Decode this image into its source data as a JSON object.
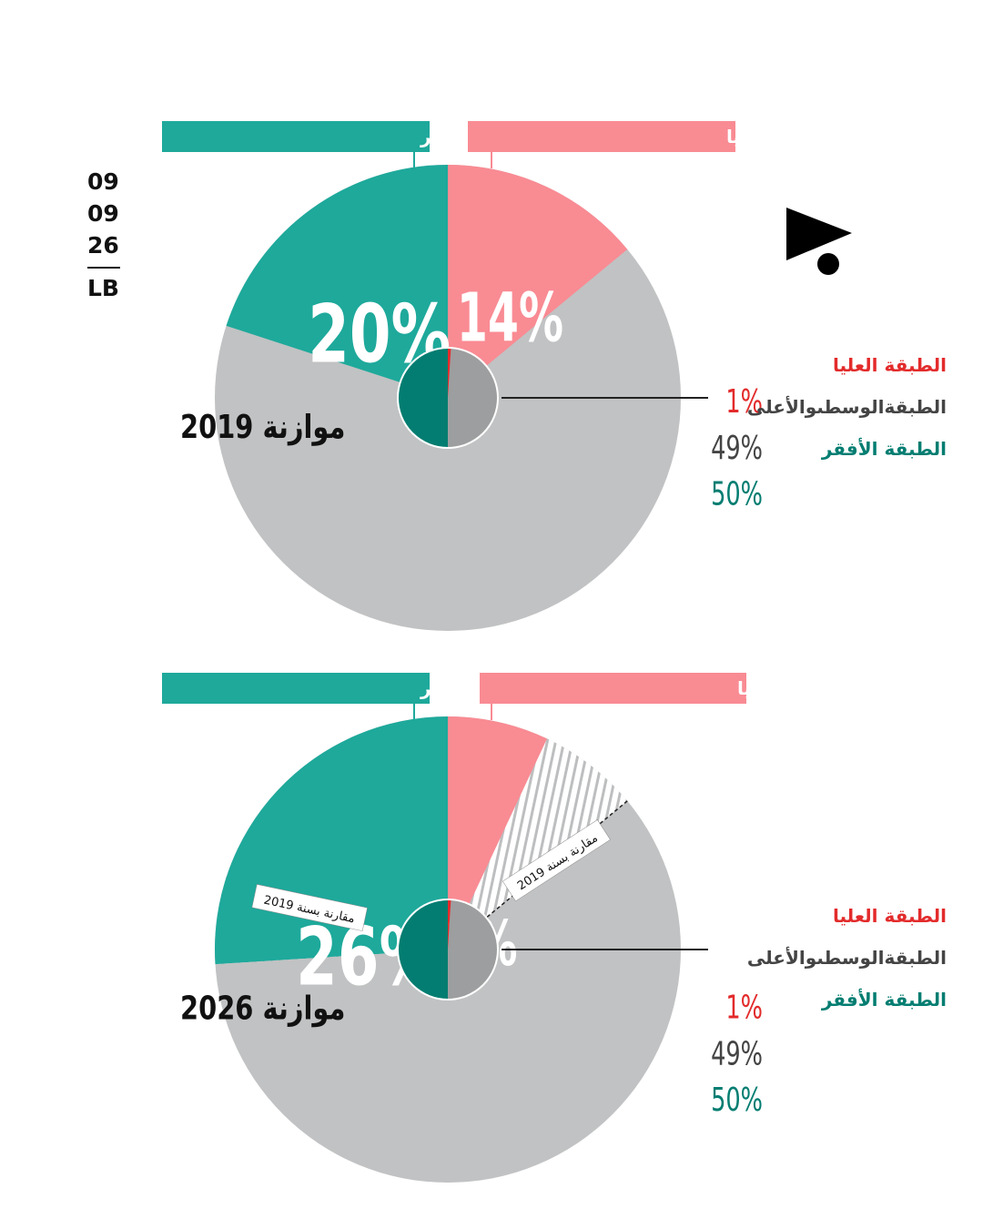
{
  "date": {
    "day": "09",
    "month": "09",
    "year": "26",
    "country": "LB"
  },
  "logo": {
    "icon": "play-triangle-dot-logo-icon"
  },
  "colors": {
    "poorest": "#1ea99b",
    "poorest_dark": "#037d71",
    "top": "#f98b93",
    "top_red": "#e32b2b",
    "middle": "#c1c2c3",
    "middle_dark": "#9d9e9f",
    "label_gray": "#444444"
  },
  "chart_data": [
    {
      "type": "pie",
      "title": "موازنة 2019",
      "outer": {
        "description_label": "الحصّة من الضرائب:",
        "slices": [
          {
            "name": "الطبقة العليا",
            "value": 14,
            "label": "14%"
          },
          {
            "name": "الطبقة الوسطى والأعلى",
            "value": 66,
            "label": ""
          },
          {
            "name": "الطبقة الأفقر",
            "value": 20,
            "label": "20%"
          }
        ]
      },
      "inner": {
        "slices": [
          {
            "name": "الطبقة العليا",
            "value": 1,
            "label": "1%"
          },
          {
            "name": "الطبقةالوسطىوالأعلى",
            "value": 49,
            "label": "49%"
          },
          {
            "name": "الطبقة الأفقر",
            "value": 50,
            "label": "50%"
          }
        ]
      },
      "comparison": null
    },
    {
      "type": "pie",
      "title": "موازنة 2026",
      "outer": {
        "description_label": "الحصّة من الضرائب:",
        "slices": [
          {
            "name": "الطبقة العليا",
            "value": 7,
            "label": "7%"
          },
          {
            "name": "الطبقة الوسطى والأعلى",
            "value": 67,
            "label": ""
          },
          {
            "name": "الطبقة الأفقر",
            "value": 26,
            "label": "26%"
          }
        ]
      },
      "inner": {
        "slices": [
          {
            "name": "الطبقة العليا",
            "value": 1,
            "label": "1%"
          },
          {
            "name": "الطبقةالوسطىوالأعلى",
            "value": 49,
            "label": "49%"
          },
          {
            "name": "الطبقة الأفقر",
            "value": 50,
            "label": "50%"
          }
        ]
      },
      "comparison": {
        "text": "مقارنة بسنة 2019",
        "baseline_top": 14,
        "baseline_poorest": 20
      }
    }
  ]
}
